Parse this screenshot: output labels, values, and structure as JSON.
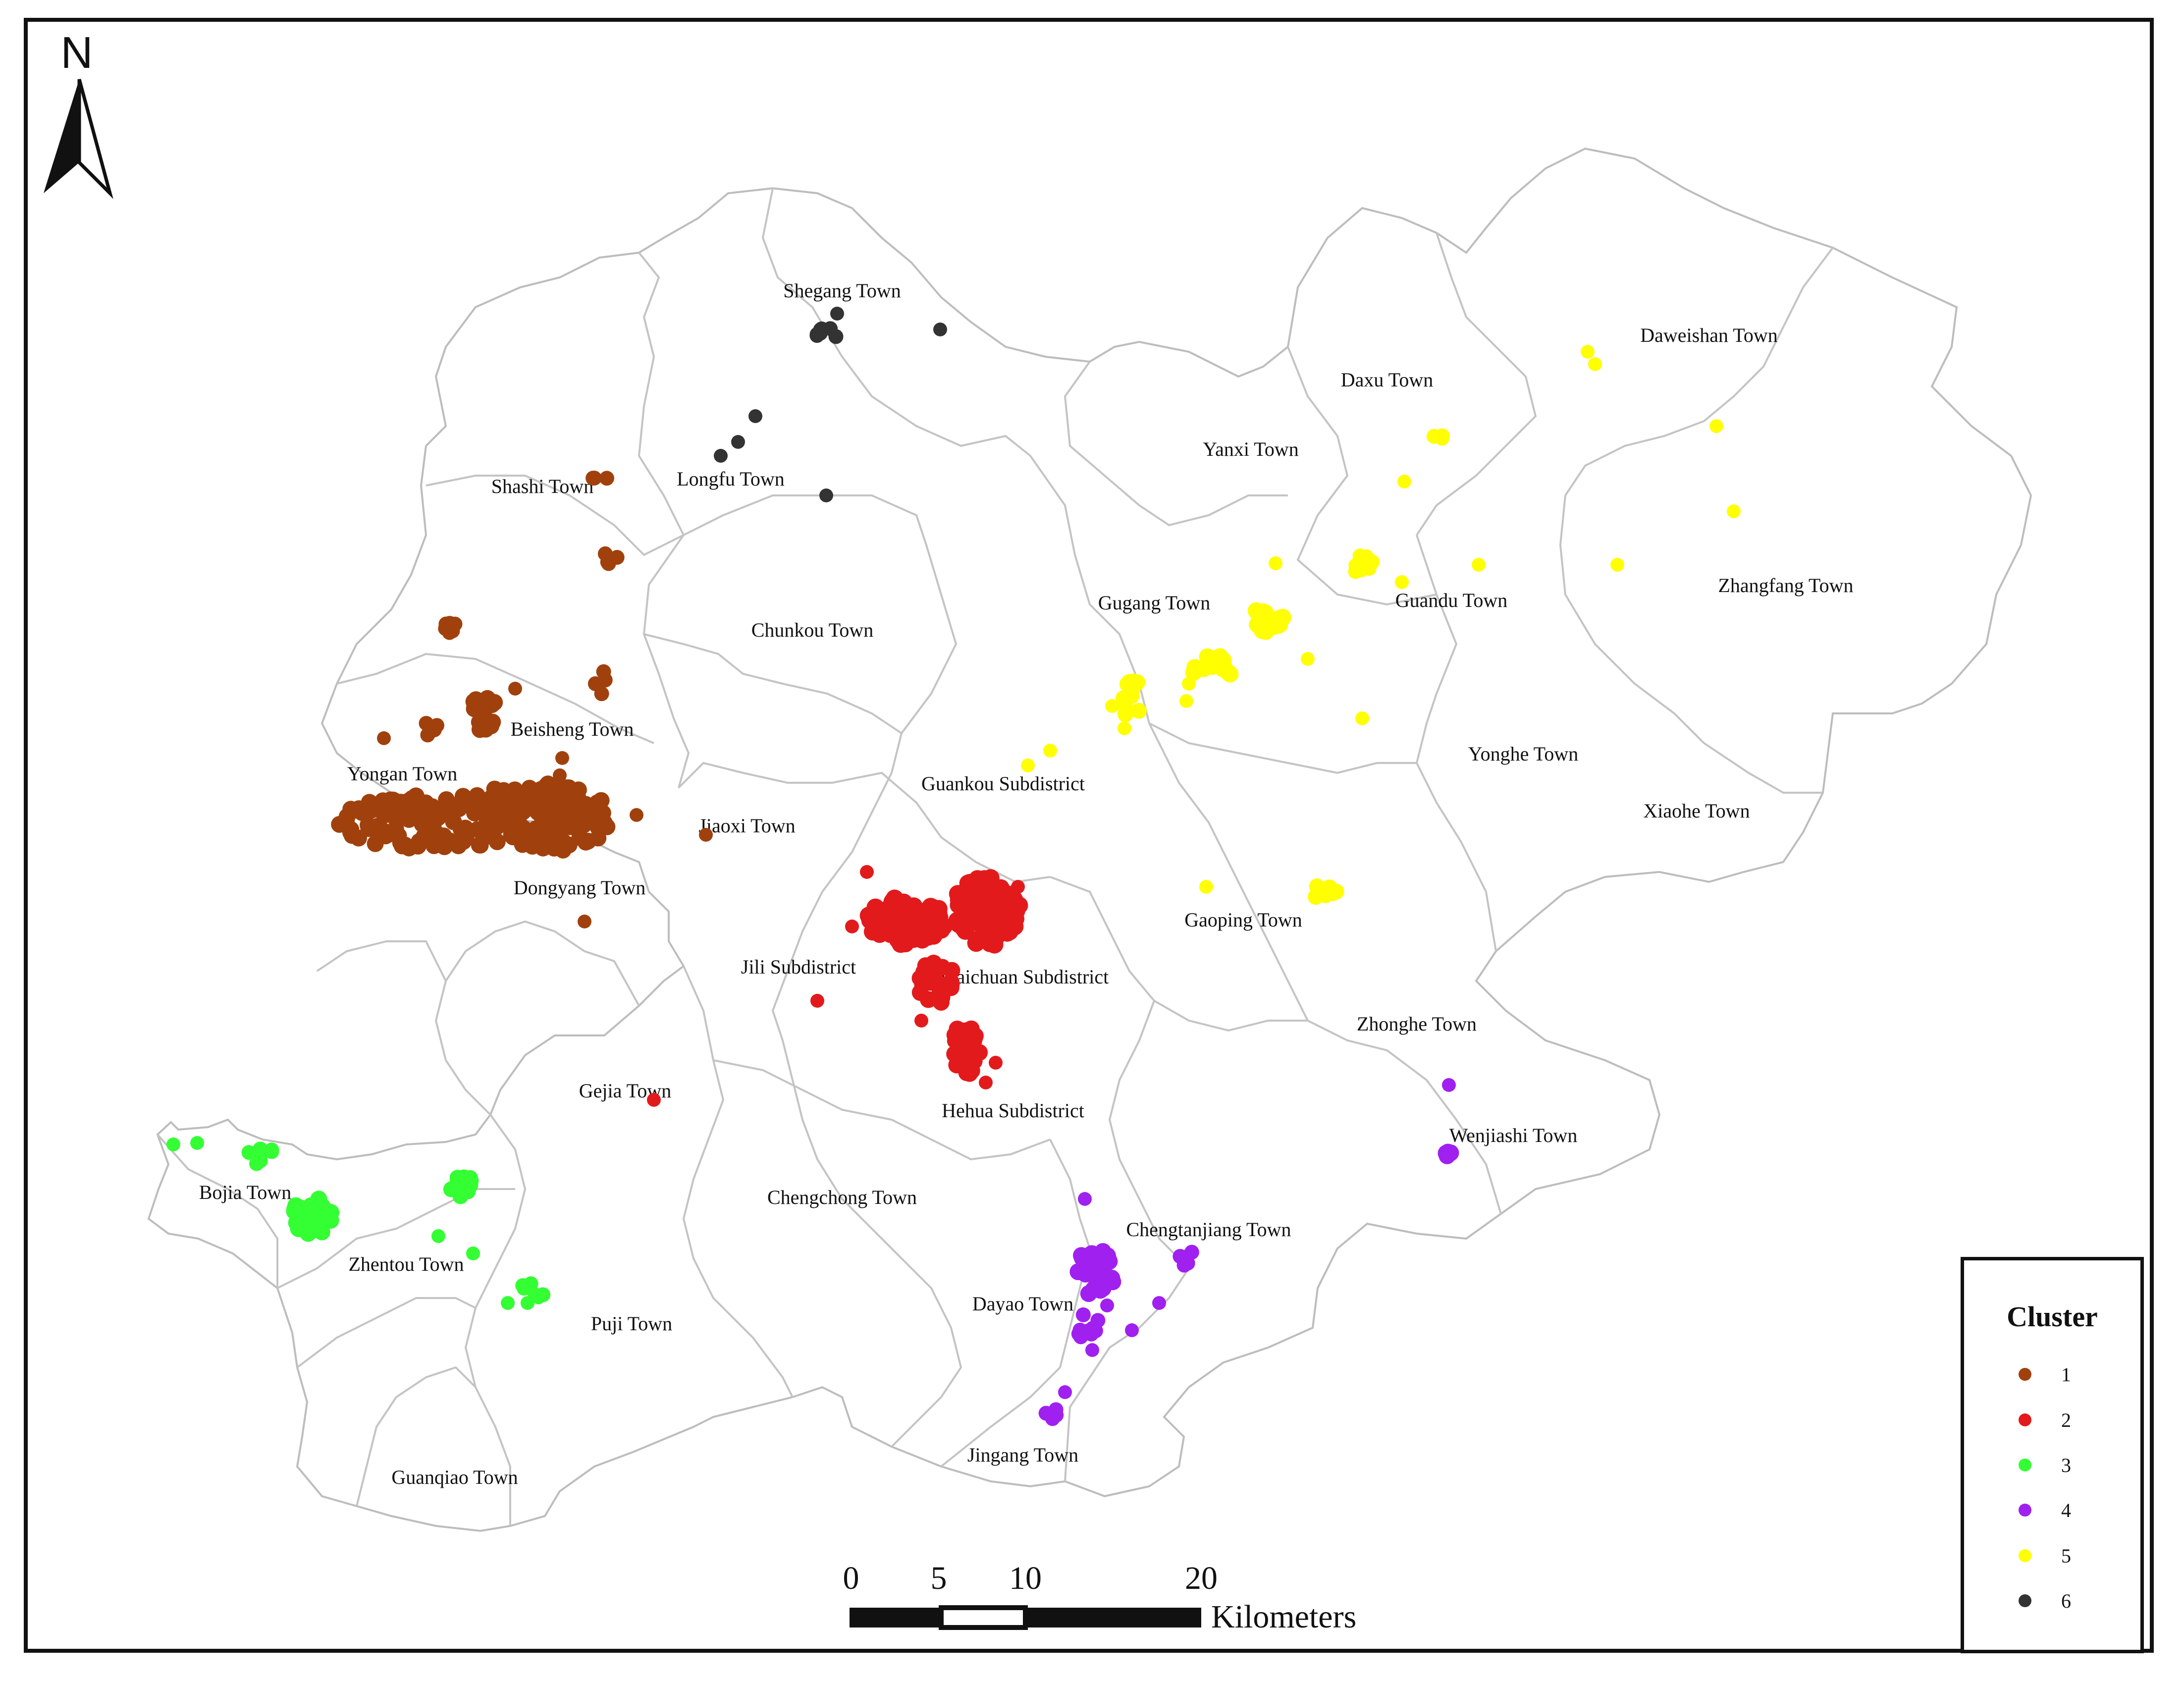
{
  "north_arrow": {
    "letter": "N"
  },
  "towns": [
    {
      "name": "Shegang Town"
    },
    {
      "name": "Longfu Town"
    },
    {
      "name": "Shashi Town"
    },
    {
      "name": "Daweishan Town"
    },
    {
      "name": "Daxu Town"
    },
    {
      "name": "Yanxi Town"
    },
    {
      "name": "Gugang Town"
    },
    {
      "name": "Guandu Town"
    },
    {
      "name": "Zhangfang Town"
    },
    {
      "name": "Chunkou Town"
    },
    {
      "name": "Beisheng Town"
    },
    {
      "name": "Yongan Town"
    },
    {
      "name": "Yonghe Town"
    },
    {
      "name": "Guankou Subdistrict"
    },
    {
      "name": "Xiaohe Town"
    },
    {
      "name": "Jiaoxi Town"
    },
    {
      "name": "Dongyang Town"
    },
    {
      "name": "Gaoping Town"
    },
    {
      "name": "Jili Subdistrict"
    },
    {
      "name": "Huaichuan Subdistrict"
    },
    {
      "name": "Zhonghe Town"
    },
    {
      "name": "Gejia Town"
    },
    {
      "name": "Hehua Subdistrict"
    },
    {
      "name": "Wenjiashi Town"
    },
    {
      "name": "Bojia Town"
    },
    {
      "name": "Chengchong Town"
    },
    {
      "name": "Chengtanjiang Town"
    },
    {
      "name": "Zhentou Town"
    },
    {
      "name": "Dayao Town"
    },
    {
      "name": "Puji Town"
    },
    {
      "name": "Jingang Town"
    },
    {
      "name": "Guanqiao Town"
    }
  ],
  "legend": {
    "title": "Cluster",
    "items": [
      {
        "label": "1",
        "color": "#a0410d"
      },
      {
        "label": "2",
        "color": "#e31a1c"
      },
      {
        "label": "3",
        "color": "#33ff33"
      },
      {
        "label": "4",
        "color": "#a020f0"
      },
      {
        "label": "5",
        "color": "#ffff00"
      },
      {
        "label": "6",
        "color": "#333333"
      }
    ]
  },
  "scale_bar": {
    "ticks": [
      "0",
      "5",
      "10",
      "20"
    ],
    "unit": "Kilometers"
  }
}
